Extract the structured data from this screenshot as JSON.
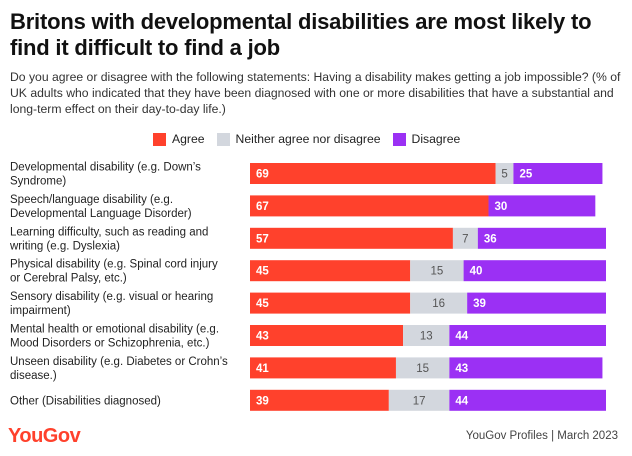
{
  "colors": {
    "agree": "#ff412c",
    "neither": "#d3d7de",
    "disagree": "#9b30f4"
  },
  "header": {
    "title": "Britons with developmental disabilities are most likely to find it difficult to find a job",
    "subtitle": "Do you agree or disagree with the following statements: Having a disability makes getting a job impossible? (% of UK adults who indicated that they have been diagnosed with one or more disabilities that have a substantial and long-term effect on their day-to-day life.)"
  },
  "legend": {
    "agree": "Agree",
    "neither": "Neither agree nor disagree",
    "disagree": "Disagree"
  },
  "footer": {
    "logo": "YouGov",
    "source": "YouGov Profiles | March 2023"
  },
  "chart_data": {
    "type": "bar",
    "orientation": "horizontal",
    "stacked": true,
    "categories": [
      [
        "Developmental disability (e.g. Down’s",
        "Syndrome)"
      ],
      [
        "Speech/language disability (e.g.",
        "Developmental Language Disorder)"
      ],
      [
        "Learning difficulty, such as reading and",
        "writing (e.g. Dyslexia)"
      ],
      [
        "Physical disability (e.g. Spinal cord injury",
        "or Cerebral Palsy, etc.)"
      ],
      [
        "Sensory disability (e.g. visual or hearing",
        "impairment)"
      ],
      [
        "Mental health or emotional disability (e.g.",
        "Mood Disorders or Schizophrenia, etc.)"
      ],
      [
        "Unseen disability (e.g. Diabetes or Crohn’s",
        "disease.)"
      ],
      [
        "Other (Disabilities diagnosed)"
      ]
    ],
    "series": [
      {
        "name": "Agree",
        "values": [
          69,
          67,
          57,
          45,
          45,
          43,
          41,
          39
        ]
      },
      {
        "name": "Neither agree nor disagree",
        "values": [
          5,
          null,
          7,
          15,
          16,
          13,
          15,
          17
        ]
      },
      {
        "name": "Disagree",
        "values": [
          25,
          30,
          36,
          40,
          39,
          44,
          43,
          44
        ]
      }
    ],
    "xlim": [
      0,
      100
    ],
    "legend_position": "top"
  }
}
